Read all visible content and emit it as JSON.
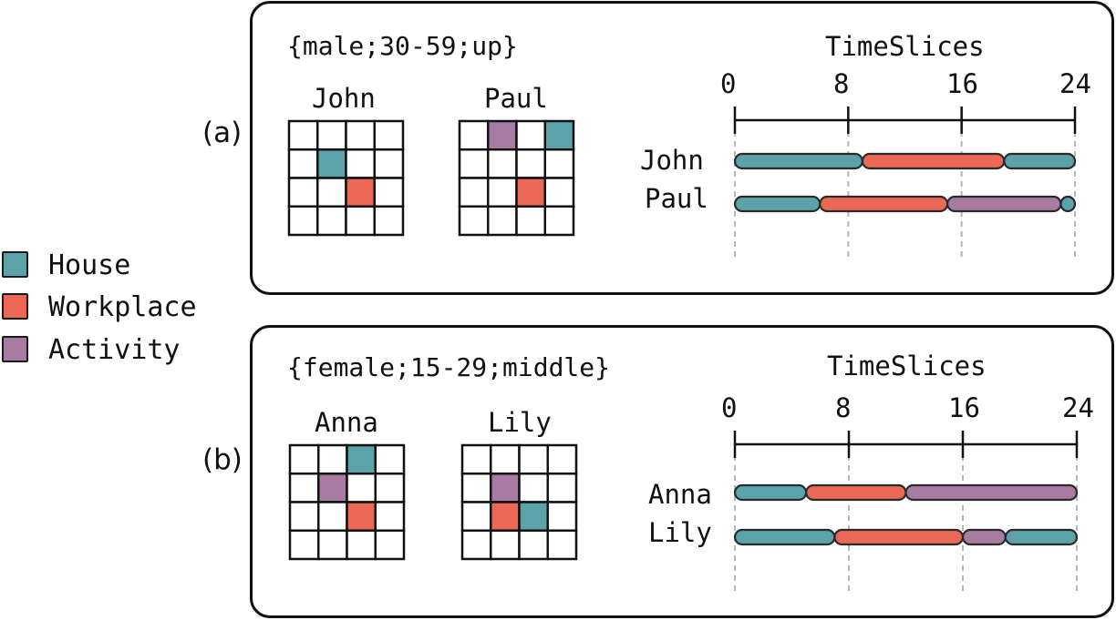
{
  "colors": {
    "house": "#5ba3a8",
    "workplace": "#ec6856",
    "activity": "#a87ba3"
  },
  "legend": [
    {
      "label": "House",
      "color": "#5ba3a8"
    },
    {
      "label": "Workplace",
      "color": "#ec6856"
    },
    {
      "label": "Activity",
      "color": "#a87ba3"
    }
  ],
  "panels": [
    {
      "label": "(a)",
      "group": "{male;30-59;up}",
      "timeline_title": "TimeSlices",
      "ticks": [
        "0",
        "8",
        "16",
        "24"
      ],
      "people": [
        {
          "name": "John",
          "grid": [
            [
              null,
              null,
              null,
              null
            ],
            [
              null,
              "house",
              null,
              null
            ],
            [
              null,
              null,
              "workplace",
              null
            ],
            [
              null,
              null,
              null,
              null
            ]
          ],
          "timeline": [
            {
              "start": 0,
              "end": 9,
              "place": "house"
            },
            {
              "start": 9,
              "end": 19,
              "place": "workplace"
            },
            {
              "start": 19,
              "end": 24,
              "place": "house"
            }
          ]
        },
        {
          "name": "Paul",
          "grid": [
            [
              null,
              "activity",
              null,
              "house"
            ],
            [
              null,
              null,
              null,
              null
            ],
            [
              null,
              null,
              "workplace",
              null
            ],
            [
              null,
              null,
              null,
              null
            ]
          ],
          "timeline": [
            {
              "start": 0,
              "end": 6,
              "place": "house"
            },
            {
              "start": 6,
              "end": 15,
              "place": "workplace"
            },
            {
              "start": 15,
              "end": 23,
              "place": "activity"
            },
            {
              "start": 23,
              "end": 24,
              "place": "house"
            }
          ]
        }
      ]
    },
    {
      "label": "(b)",
      "group": "{female;15-29;middle}",
      "timeline_title": "TimeSlices",
      "ticks": [
        "0",
        "8",
        "16",
        "24"
      ],
      "people": [
        {
          "name": "Anna",
          "grid": [
            [
              null,
              null,
              "house",
              null
            ],
            [
              null,
              "activity",
              null,
              null
            ],
            [
              null,
              null,
              "workplace",
              null
            ],
            [
              null,
              null,
              null,
              null
            ]
          ],
          "timeline": [
            {
              "start": 0,
              "end": 5,
              "place": "house"
            },
            {
              "start": 5,
              "end": 12,
              "place": "workplace"
            },
            {
              "start": 12,
              "end": 24,
              "place": "activity"
            }
          ]
        },
        {
          "name": "Lily",
          "grid": [
            [
              null,
              null,
              null,
              null
            ],
            [
              null,
              "activity",
              null,
              null
            ],
            [
              null,
              "workplace",
              "house",
              null
            ],
            [
              null,
              null,
              null,
              null
            ]
          ],
          "timeline": [
            {
              "start": 0,
              "end": 7,
              "place": "house"
            },
            {
              "start": 7,
              "end": 16,
              "place": "workplace"
            },
            {
              "start": 16,
              "end": 19,
              "place": "activity"
            },
            {
              "start": 19,
              "end": 24,
              "place": "house"
            }
          ]
        }
      ]
    }
  ]
}
